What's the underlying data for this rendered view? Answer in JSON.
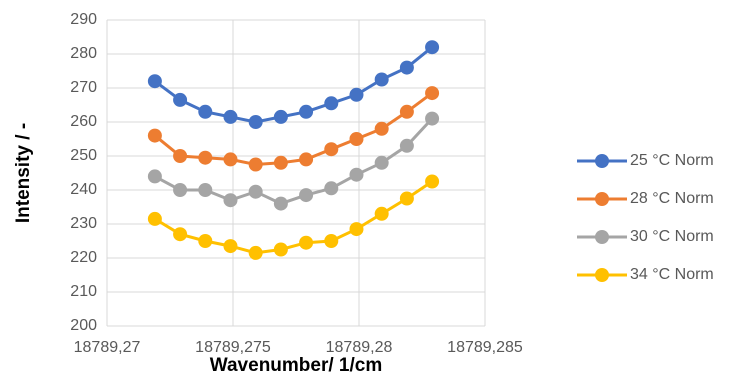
{
  "chart_data": {
    "type": "line",
    "xlabel": "Wavenumber/  1/cm",
    "ylabel": "Intensity / -",
    "x": [
      18789.2719,
      18789.2729,
      18789.2739,
      18789.2749,
      18789.2759,
      18789.2769,
      18789.2779,
      18789.2789,
      18789.2799,
      18789.2809,
      18789.2819,
      18789.2829
    ],
    "series": [
      {
        "name": "25 °C Norm",
        "color": "#4472c4",
        "values": [
          272,
          266.5,
          263,
          261.5,
          260,
          261.5,
          263,
          265.5,
          268,
          272.5,
          276,
          282
        ]
      },
      {
        "name": "28 °C Norm",
        "color": "#ed7d31",
        "values": [
          256,
          250,
          249.5,
          249,
          247.5,
          248,
          249,
          252,
          255,
          258,
          263,
          268.5
        ]
      },
      {
        "name": "30 °C Norm",
        "color": "#a5a5a5",
        "values": [
          244,
          240,
          240,
          237,
          239.5,
          236,
          238.5,
          240.5,
          244.5,
          248,
          253,
          261
        ]
      },
      {
        "name": "34 °C Norm",
        "color": "#ffc000",
        "values": [
          231.5,
          227,
          225,
          223.5,
          221.5,
          222.5,
          224.5,
          225,
          228.5,
          233,
          237.5,
          242.5
        ]
      }
    ],
    "xlim": [
      18789.27,
      18789.285
    ],
    "xticks": [
      {
        "value": 18789.27,
        "label": "18789,27"
      },
      {
        "value": 18789.275,
        "label": "18789,275"
      },
      {
        "value": 18789.28,
        "label": "18789,28"
      },
      {
        "value": 18789.285,
        "label": "18789,285"
      }
    ],
    "ylim": [
      200,
      290
    ],
    "yticks": [
      200,
      210,
      220,
      230,
      240,
      250,
      260,
      270,
      280,
      290
    ],
    "grid": true,
    "legend": "right"
  }
}
